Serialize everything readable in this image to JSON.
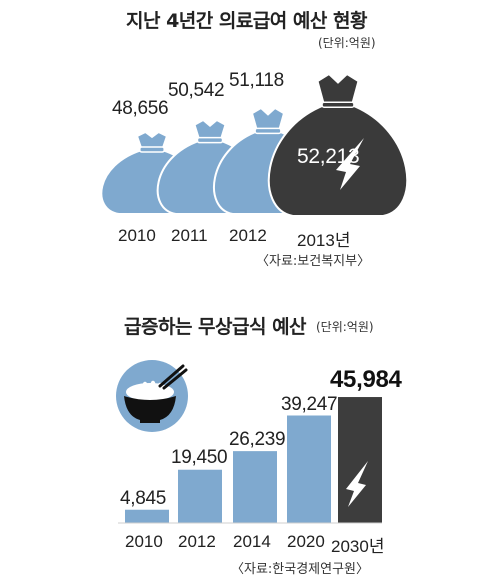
{
  "chart_data": [
    {
      "type": "bar",
      "title": "지난 4년간 의료급여 예산 현황",
      "unit": "(단위:억원)",
      "categories": [
        "2010",
        "2011",
        "2012",
        "2013년"
      ],
      "values": [
        48656,
        50542,
        51118,
        52213
      ],
      "value_labels": [
        "48,656",
        "50,542",
        "51,118",
        "52,213"
      ],
      "source": "〈자료:보건복지부〉",
      "colors": {
        "past": "#7fa9cf",
        "highlight": "#3a3a3a"
      }
    },
    {
      "type": "bar",
      "title": "급증하는 무상급식 예산",
      "unit": "(단위:억원)",
      "categories": [
        "2010",
        "2012",
        "2014",
        "2020",
        "2030년"
      ],
      "values": [
        4845,
        19450,
        26239,
        39247,
        45984
      ],
      "value_labels": [
        "4,845",
        "19,450",
        "26,239",
        "39,247",
        "45,984"
      ],
      "ylim": [
        0,
        46000
      ],
      "source": "〈자료:한국경제연구원〉",
      "colors": {
        "past": "#7fa9cf",
        "highlight": "#3d3d3d"
      }
    }
  ]
}
